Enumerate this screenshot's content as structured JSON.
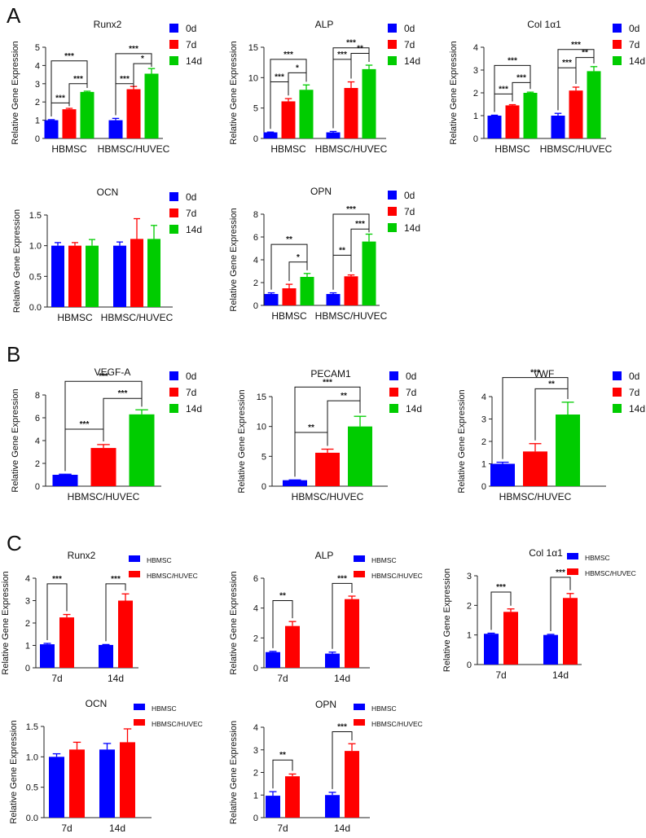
{
  "panel_labels": [
    "A",
    "B",
    "C"
  ],
  "colors": {
    "c0d": "#0000ff",
    "c7d": "#ff0000",
    "c14d": "#00cc00",
    "HBMSC": "#0000ff",
    "HBMSC/HUVEC": "#ff0000"
  },
  "chart_data": [
    {
      "type": "bar",
      "panel": "A",
      "title": "Runx2",
      "ylabel": "Relative Gene Expression",
      "ylim": [
        0,
        5
      ],
      "yticks": [
        "0",
        "1",
        "2",
        "3",
        "4",
        "5"
      ],
      "categories": [
        "HBMSC",
        "HBMSC/HUVEC"
      ],
      "series": [
        {
          "name": "0d",
          "values": [
            1.0,
            1.0
          ],
          "errors": [
            0.03,
            0.1
          ]
        },
        {
          "name": "7d",
          "values": [
            1.6,
            2.7
          ],
          "errors": [
            0.05,
            0.15
          ]
        },
        {
          "name": "14d",
          "values": [
            2.55,
            3.55
          ],
          "errors": [
            0.04,
            0.28
          ]
        }
      ],
      "significance": [
        {
          "group": 0,
          "from": 0,
          "to": 1,
          "label": "***",
          "level": 1.95
        },
        {
          "group": 0,
          "from": 1,
          "to": 2,
          "label": "***",
          "level": 3.0
        },
        {
          "group": 0,
          "from": 0,
          "to": 2,
          "label": "***",
          "level": 4.25
        },
        {
          "group": 1,
          "from": 0,
          "to": 1,
          "label": "***",
          "level": 3.0
        },
        {
          "group": 1,
          "from": 1,
          "to": 2,
          "label": "*",
          "level": 4.1
        },
        {
          "group": 1,
          "from": 0,
          "to": 2,
          "label": "***",
          "level": 4.65
        }
      ]
    },
    {
      "type": "bar",
      "panel": "A",
      "title": "ALP",
      "ylabel": "Relative Gene Expression",
      "ylim": [
        0,
        15
      ],
      "yticks": [
        "0",
        "5",
        "10",
        "15"
      ],
      "categories": [
        "HBMSC",
        "HBMSC/HUVEC"
      ],
      "series": [
        {
          "name": "0d",
          "values": [
            1.0,
            1.0
          ],
          "errors": [
            0.05,
            0.15
          ]
        },
        {
          "name": "7d",
          "values": [
            6.1,
            8.3
          ],
          "errors": [
            0.45,
            1.0
          ]
        },
        {
          "name": "14d",
          "values": [
            8.0,
            11.4
          ],
          "errors": [
            0.8,
            0.65
          ]
        }
      ],
      "significance": [
        {
          "group": 0,
          "from": 0,
          "to": 1,
          "label": "***",
          "level": 9.3
        },
        {
          "group": 0,
          "from": 1,
          "to": 2,
          "label": "*",
          "level": 10.8
        },
        {
          "group": 0,
          "from": 0,
          "to": 2,
          "label": "***",
          "level": 13.0
        },
        {
          "group": 1,
          "from": 0,
          "to": 1,
          "label": "***",
          "level": 13.0
        },
        {
          "group": 1,
          "from": 1,
          "to": 2,
          "label": "**",
          "level": 14.0
        },
        {
          "group": 1,
          "from": 0,
          "to": 2,
          "label": "***",
          "level": 14.9
        }
      ]
    },
    {
      "type": "bar",
      "panel": "A",
      "title": "Col 1α1",
      "ylabel": "Relative Gene Expression",
      "ylim": [
        0,
        4
      ],
      "yticks": [
        "0",
        "1",
        "2",
        "3",
        "4"
      ],
      "categories": [
        "HBMSC",
        "HBMSC/HUVEC"
      ],
      "series": [
        {
          "name": "0d",
          "values": [
            1.0,
            1.0
          ],
          "errors": [
            0.02,
            0.1
          ]
        },
        {
          "name": "7d",
          "values": [
            1.45,
            2.1
          ],
          "errors": [
            0.03,
            0.15
          ]
        },
        {
          "name": "14d",
          "values": [
            2.0,
            2.95
          ],
          "errors": [
            0.03,
            0.2
          ]
        }
      ],
      "significance": [
        {
          "group": 0,
          "from": 0,
          "to": 1,
          "label": "***",
          "level": 1.95
        },
        {
          "group": 0,
          "from": 1,
          "to": 2,
          "label": "***",
          "level": 2.45
        },
        {
          "group": 0,
          "from": 0,
          "to": 2,
          "label": "***",
          "level": 3.2
        },
        {
          "group": 1,
          "from": 0,
          "to": 1,
          "label": "***",
          "level": 3.1
        },
        {
          "group": 1,
          "from": 1,
          "to": 2,
          "label": "**",
          "level": 3.55
        },
        {
          "group": 1,
          "from": 0,
          "to": 2,
          "label": "***",
          "level": 3.9
        }
      ]
    },
    {
      "type": "bar",
      "panel": "A",
      "title": "OCN",
      "ylabel": "Relative Gene Expression",
      "ylim": [
        0,
        1.5
      ],
      "yticks": [
        "0.0",
        "0.5",
        "1.0",
        "1.5"
      ],
      "categories": [
        "HBMSC",
        "HBMSC/HUVEC"
      ],
      "series": [
        {
          "name": "0d",
          "values": [
            1.0,
            1.0
          ],
          "errors": [
            0.05,
            0.06
          ]
        },
        {
          "name": "7d",
          "values": [
            1.0,
            1.11
          ],
          "errors": [
            0.05,
            0.33
          ]
        },
        {
          "name": "14d",
          "values": [
            1.0,
            1.11
          ],
          "errors": [
            0.1,
            0.22
          ]
        }
      ],
      "significance": []
    },
    {
      "type": "bar",
      "panel": "A",
      "title": "OPN",
      "ylabel": "Relative Gene Expression",
      "ylim": [
        0,
        8
      ],
      "yticks": [
        "0",
        "2",
        "4",
        "6",
        "8"
      ],
      "categories": [
        "HBMSC",
        "HBMSC/HUVEC"
      ],
      "series": [
        {
          "name": "0d",
          "values": [
            1.0,
            1.0
          ],
          "errors": [
            0.1,
            0.1
          ]
        },
        {
          "name": "7d",
          "values": [
            1.5,
            2.55
          ],
          "errors": [
            0.35,
            0.12
          ]
        },
        {
          "name": "14d",
          "values": [
            2.5,
            5.6
          ],
          "errors": [
            0.3,
            0.65
          ]
        }
      ],
      "significance": [
        {
          "group": 0,
          "from": 1,
          "to": 2,
          "label": "*",
          "level": 3.8
        },
        {
          "group": 0,
          "from": 0,
          "to": 2,
          "label": "**",
          "level": 5.35
        },
        {
          "group": 1,
          "from": 0,
          "to": 1,
          "label": "**",
          "level": 4.4
        },
        {
          "group": 1,
          "from": 1,
          "to": 2,
          "label": "***",
          "level": 6.7
        },
        {
          "group": 1,
          "from": 0,
          "to": 2,
          "label": "***",
          "level": 8.0
        }
      ]
    },
    {
      "type": "bar",
      "panel": "B",
      "title": "VEGF-A",
      "ylabel": "Relative Gene Expression",
      "ylim": [
        0,
        8
      ],
      "yticks": [
        "0",
        "2",
        "4",
        "6",
        "8"
      ],
      "categories": [
        "HBMSC/HUVEC"
      ],
      "series": [
        {
          "name": "0d",
          "values": [
            1.0
          ],
          "errors": [
            0.05
          ]
        },
        {
          "name": "7d",
          "values": [
            3.35
          ],
          "errors": [
            0.3
          ]
        },
        {
          "name": "14d",
          "values": [
            6.3
          ],
          "errors": [
            0.4
          ]
        }
      ],
      "significance": [
        {
          "group": 0,
          "from": 0,
          "to": 1,
          "label": "***",
          "level": 5.0
        },
        {
          "group": 0,
          "from": 1,
          "to": 2,
          "label": "***",
          "level": 7.7
        },
        {
          "group": 0,
          "from": 0,
          "to": 2,
          "label": "***",
          "level": 9.2
        }
      ]
    },
    {
      "type": "bar",
      "panel": "B",
      "title": "PECAM1",
      "ylabel": "Relative Gene Expression",
      "ylim": [
        0,
        15
      ],
      "yticks": [
        "0",
        "5",
        "10",
        "15"
      ],
      "categories": [
        "HBMSC/HUVEC"
      ],
      "series": [
        {
          "name": "0d",
          "values": [
            1.0
          ],
          "errors": [
            0.05
          ]
        },
        {
          "name": "7d",
          "values": [
            5.6
          ],
          "errors": [
            0.6
          ]
        },
        {
          "name": "14d",
          "values": [
            10.0
          ],
          "errors": [
            1.7
          ]
        }
      ],
      "significance": [
        {
          "group": 0,
          "from": 0,
          "to": 1,
          "label": "**",
          "level": 9.0
        },
        {
          "group": 0,
          "from": 1,
          "to": 2,
          "label": "**",
          "level": 14.3
        },
        {
          "group": 0,
          "from": 0,
          "to": 2,
          "label": "***",
          "level": 16.6
        }
      ]
    },
    {
      "type": "bar",
      "panel": "B",
      "title": "vWF",
      "ylabel": "Relative Gene Expression",
      "ylim": [
        0,
        4
      ],
      "yticks": [
        "0",
        "1",
        "2",
        "3",
        "4"
      ],
      "categories": [
        "HBMSC/HUVEC"
      ],
      "series": [
        {
          "name": "0d",
          "values": [
            1.0
          ],
          "errors": [
            0.07
          ]
        },
        {
          "name": "7d",
          "values": [
            1.55
          ],
          "errors": [
            0.35
          ]
        },
        {
          "name": "14d",
          "values": [
            3.2
          ],
          "errors": [
            0.55
          ]
        }
      ],
      "significance": [
        {
          "group": 0,
          "from": 1,
          "to": 2,
          "label": "**",
          "level": 4.35
        },
        {
          "group": 0,
          "from": 0,
          "to": 2,
          "label": "***",
          "level": 4.85
        }
      ]
    },
    {
      "type": "bar",
      "panel": "C",
      "title": "Runx2",
      "ylabel": "Relative Gene Expression",
      "ylim": [
        0,
        4
      ],
      "yticks": [
        "0",
        "1",
        "2",
        "3",
        "4"
      ],
      "categories": [
        "7d",
        "14d"
      ],
      "series": [
        {
          "name": "HBMSC",
          "values": [
            1.05,
            1.02
          ],
          "errors": [
            0.04,
            0.02
          ]
        },
        {
          "name": "HBMSC/HUVEC",
          "values": [
            2.25,
            3.0
          ],
          "errors": [
            0.13,
            0.3
          ]
        }
      ],
      "significance": [
        {
          "group": 0,
          "from": 0,
          "to": 1,
          "label": "***",
          "level": 3.75
        },
        {
          "group": 1,
          "from": 0,
          "to": 1,
          "label": "***",
          "level": 3.75
        }
      ]
    },
    {
      "type": "bar",
      "panel": "C",
      "title": "ALP",
      "ylabel": "Relative Gene Expression",
      "ylim": [
        0,
        6
      ],
      "yticks": [
        "0",
        "2",
        "4",
        "6"
      ],
      "categories": [
        "7d",
        "14d"
      ],
      "series": [
        {
          "name": "HBMSC",
          "values": [
            1.05,
            0.95
          ],
          "errors": [
            0.05,
            0.1
          ]
        },
        {
          "name": "HBMSC/HUVEC",
          "values": [
            2.8,
            4.6
          ],
          "errors": [
            0.3,
            0.2
          ]
        }
      ],
      "significance": [
        {
          "group": 0,
          "from": 0,
          "to": 1,
          "label": "**",
          "level": 4.5
        },
        {
          "group": 1,
          "from": 0,
          "to": 1,
          "label": "***",
          "level": 5.65
        }
      ]
    },
    {
      "type": "bar",
      "panel": "C",
      "title": "Col 1α1",
      "ylabel": "Relative Gene Expression",
      "ylim": [
        0,
        3
      ],
      "yticks": [
        "0",
        "1",
        "2",
        "3"
      ],
      "categories": [
        "7d",
        "14d"
      ],
      "series": [
        {
          "name": "HBMSC",
          "values": [
            1.04,
            1.0
          ],
          "errors": [
            0.02,
            0.02
          ]
        },
        {
          "name": "HBMSC/HUVEC",
          "values": [
            1.78,
            2.25
          ],
          "errors": [
            0.1,
            0.15
          ]
        }
      ],
      "significance": [
        {
          "group": 0,
          "from": 0,
          "to": 1,
          "label": "***",
          "level": 2.45
        },
        {
          "group": 1,
          "from": 0,
          "to": 1,
          "label": "***",
          "level": 2.95
        }
      ]
    },
    {
      "type": "bar",
      "panel": "C",
      "title": "OCN",
      "ylabel": "Relative Gene Expression",
      "ylim": [
        0,
        1.5
      ],
      "yticks": [
        "0.0",
        "0.5",
        "1.0",
        "1.5"
      ],
      "categories": [
        "7d",
        "14d"
      ],
      "series": [
        {
          "name": "HBMSC",
          "values": [
            1.0,
            1.12
          ],
          "errors": [
            0.05,
            0.1
          ]
        },
        {
          "name": "HBMSC/HUVEC",
          "values": [
            1.12,
            1.24
          ],
          "errors": [
            0.12,
            0.22
          ]
        }
      ],
      "significance": []
    },
    {
      "type": "bar",
      "panel": "C",
      "title": "OPN",
      "ylabel": "Relative Gene Expression",
      "ylim": [
        0,
        4
      ],
      "yticks": [
        "0",
        "1",
        "2",
        "3",
        "4"
      ],
      "categories": [
        "7d",
        "14d"
      ],
      "series": [
        {
          "name": "HBMSC",
          "values": [
            0.97,
            1.0
          ],
          "errors": [
            0.18,
            0.12
          ]
        },
        {
          "name": "HBMSC/HUVEC",
          "values": [
            1.83,
            2.95
          ],
          "errors": [
            0.1,
            0.32
          ]
        }
      ],
      "significance": [
        {
          "group": 0,
          "from": 0,
          "to": 1,
          "label": "**",
          "level": 2.55
        },
        {
          "group": 1,
          "from": 0,
          "to": 1,
          "label": "***",
          "level": 3.8
        }
      ]
    }
  ]
}
